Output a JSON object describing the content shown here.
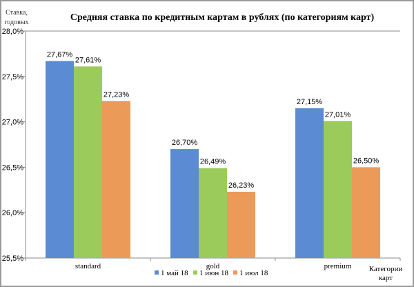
{
  "chart_data": {
    "type": "bar",
    "title": "Средняя ставка по кредитным картам в рублях (по категориям карт)",
    "ylabel": "Ставка, годовых",
    "xlabel": "Категории карт",
    "ylim": [
      25.5,
      28.0
    ],
    "yticks": [
      "25,5%",
      "26,0%",
      "26,5%",
      "27,0%",
      "27,5%",
      "28,0%"
    ],
    "categories": [
      "standard",
      "gold",
      "premium"
    ],
    "series": [
      {
        "name": "1 май 18",
        "color": "#5b8bd3",
        "values": [
          27.67,
          26.7,
          27.15
        ],
        "labels": [
          "27,67%",
          "26,70%",
          "27,15%"
        ]
      },
      {
        "name": "1 июн 18",
        "color": "#9bcb5b",
        "values": [
          27.61,
          26.49,
          27.01
        ],
        "labels": [
          "27,61%",
          "26,49%",
          "27,01%"
        ]
      },
      {
        "name": "1 июл 18",
        "color": "#eb9a57",
        "values": [
          27.23,
          26.23,
          26.5
        ],
        "labels": [
          "27,23%",
          "26,23%",
          "26,50%"
        ]
      }
    ],
    "legend": "bottom",
    "grid": false
  }
}
